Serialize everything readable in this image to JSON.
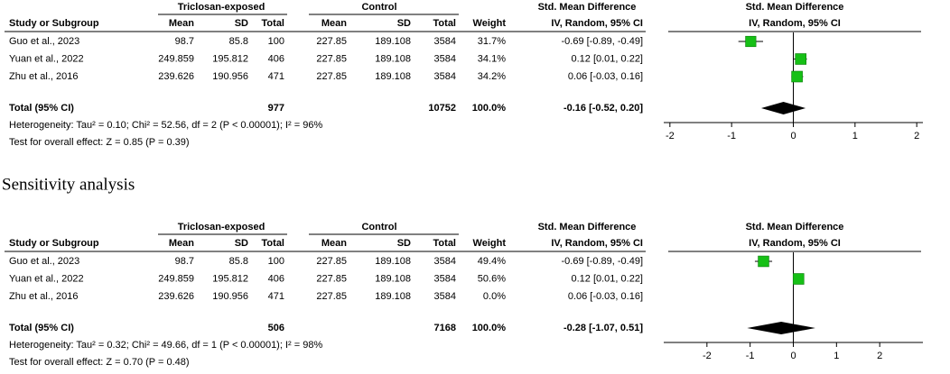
{
  "panels": [
    {
      "group_headers": [
        "Triclosan-exposed",
        "Control",
        "Std. Mean Difference",
        "Std. Mean Difference"
      ],
      "columns": [
        "Study or Subgroup",
        "Mean",
        "SD",
        "Total",
        "Mean",
        "SD",
        "Total",
        "Weight",
        "IV, Random, 95% CI",
        "IV, Random, 95% CI"
      ],
      "studies": [
        {
          "name": "Guo et al., 2023",
          "exp_mean": 98.7,
          "exp_sd": 85.8,
          "exp_total": 100,
          "ctl_mean": 227.85,
          "ctl_sd": 189.108,
          "ctl_total": 3584,
          "weight": 31.7,
          "weight_label": "31.7%",
          "ci_label": "-0.69 [-0.89, -0.49]",
          "smd": -0.69,
          "lower": -0.89,
          "upper": -0.49
        },
        {
          "name": "Yuan et al., 2022",
          "exp_mean": 249.859,
          "exp_sd": 195.812,
          "exp_total": 406,
          "ctl_mean": 227.85,
          "ctl_sd": 189.108,
          "ctl_total": 3584,
          "weight": 34.1,
          "weight_label": "34.1%",
          "ci_label": "0.12 [0.01, 0.22]",
          "smd": 0.12,
          "lower": 0.01,
          "upper": 0.22
        },
        {
          "name": "Zhu et al., 2016",
          "exp_mean": 239.626,
          "exp_sd": 190.956,
          "exp_total": 471,
          "ctl_mean": 227.85,
          "ctl_sd": 189.108,
          "ctl_total": 3584,
          "weight": 34.2,
          "weight_label": "34.2%",
          "ci_label": "0.06 [-0.03, 0.16]",
          "smd": 0.06,
          "lower": -0.03,
          "upper": 0.16
        }
      ],
      "total": {
        "name": "Total (95% CI)",
        "exp_total": 977,
        "ctl_total": 10752,
        "weight": 100.0,
        "weight_label": "100.0%",
        "ci_label": "-0.16 [-0.52, 0.20]",
        "smd": -0.16,
        "lower": -0.52,
        "upper": 0.2
      },
      "heterogeneity": "Heterogeneity: Tau² = 0.10; Chi² = 52.56, df = 2 (P < 0.00001); I² = 96%",
      "overall_test": "Test for overall effect: Z = 0.85 (P = 0.39)",
      "xlim": [
        -2.1,
        2.1
      ],
      "xticks": [
        -2,
        -1,
        0,
        1,
        2
      ]
    },
    {
      "group_headers": [
        "Triclosan-exposed",
        "Control",
        "Std. Mean Difference",
        "Std. Mean Difference"
      ],
      "columns": [
        "Study or Subgroup",
        "Mean",
        "SD",
        "Total",
        "Mean",
        "SD",
        "Total",
        "Weight",
        "IV, Random, 95% CI",
        "IV, Random, 95% CI"
      ],
      "studies": [
        {
          "name": "Guo et al., 2023",
          "exp_mean": 98.7,
          "exp_sd": 85.8,
          "exp_total": 100,
          "ctl_mean": 227.85,
          "ctl_sd": 189.108,
          "ctl_total": 3584,
          "weight": 49.4,
          "weight_label": "49.4%",
          "ci_label": "-0.69 [-0.89, -0.49]",
          "smd": -0.69,
          "lower": -0.89,
          "upper": -0.49
        },
        {
          "name": "Yuan et al., 2022",
          "exp_mean": 249.859,
          "exp_sd": 195.812,
          "exp_total": 406,
          "ctl_mean": 227.85,
          "ctl_sd": 189.108,
          "ctl_total": 3584,
          "weight": 50.6,
          "weight_label": "50.6%",
          "ci_label": "0.12 [0.01, 0.22]",
          "smd": 0.12,
          "lower": 0.01,
          "upper": 0.22
        },
        {
          "name": "Zhu et al., 2016",
          "exp_mean": 239.626,
          "exp_sd": 190.956,
          "exp_total": 471,
          "ctl_mean": 227.85,
          "ctl_sd": 189.108,
          "ctl_total": 3584,
          "weight": 0.0,
          "weight_label": "0.0%",
          "ci_label": "0.06 [-0.03, 0.16]",
          "smd": 0.06,
          "lower": -0.03,
          "upper": 0.16
        }
      ],
      "total": {
        "name": "Total (95% CI)",
        "exp_total": 506,
        "ctl_total": 7168,
        "weight": 100.0,
        "weight_label": "100.0%",
        "ci_label": "-0.28 [-1.07, 0.51]",
        "smd": -0.28,
        "lower": -1.07,
        "upper": 0.51
      },
      "heterogeneity": "Heterogeneity: Tau² = 0.32; Chi² = 49.66, df = 1 (P < 0.00001); I² = 98%",
      "overall_test": "Test for overall effect: Z = 0.70 (P = 0.48)",
      "xlim": [
        -3,
        3
      ],
      "xticks": [
        -2,
        -1,
        0,
        1,
        2
      ]
    }
  ],
  "caption": "Sensitivity analysis"
}
